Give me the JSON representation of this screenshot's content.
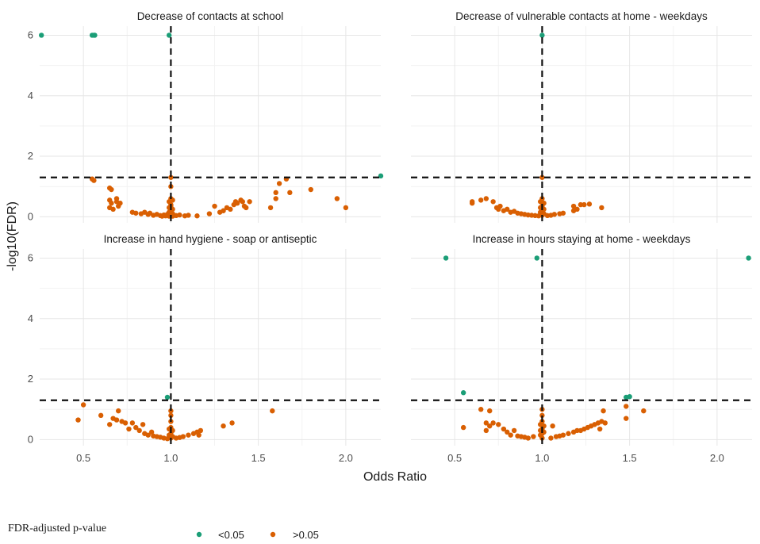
{
  "chart_data": {
    "type": "scatter",
    "xlabel": "Odds Ratio",
    "ylabel": "-log10(FDR)",
    "xlim": [
      0.25,
      2.2
    ],
    "ylim": [
      -0.2,
      6.3
    ],
    "x_ticks": [
      0.5,
      1.0,
      1.5,
      2.0
    ],
    "x_tick_labels": [
      "0.5",
      "1.0",
      "1.5",
      "2.0"
    ],
    "y_ticks": [
      0,
      2,
      4,
      6
    ],
    "y_tick_labels": [
      "0",
      "2",
      "4",
      "6"
    ],
    "reference_lines": {
      "vertical_x": 1.0,
      "horizontal_y": 1.3
    },
    "grid": true,
    "legend": {
      "title": "FDR-adjusted p-value",
      "placement": "bottom-left",
      "entries": [
        {
          "label": "<0.05",
          "color": "#1b9e77"
        },
        {
          "label": ">0.05",
          "color": "#d95f02"
        }
      ]
    },
    "colors": {
      "sig": "#1b9e77",
      "nonsig": "#d95f02"
    },
    "panels": [
      {
        "title": "Decrease of contacts at school",
        "series": [
          {
            "group": "sig",
            "points": [
              [
                0.26,
                6
              ],
              [
                0.55,
                6
              ],
              [
                0.56,
                6
              ],
              [
                0.565,
                6
              ],
              [
                0.99,
                6
              ],
              [
                2.2,
                1.35
              ]
            ]
          },
          {
            "group": "nonsig",
            "points": [
              [
                0.55,
                1.25
              ],
              [
                0.56,
                1.2
              ],
              [
                0.65,
                0.95
              ],
              [
                0.66,
                0.9
              ],
              [
                0.65,
                0.55
              ],
              [
                0.66,
                0.45
              ],
              [
                0.65,
                0.3
              ],
              [
                0.67,
                0.25
              ],
              [
                0.69,
                0.5
              ],
              [
                0.7,
                0.35
              ],
              [
                0.71,
                0.45
              ],
              [
                0.69,
                0.6
              ],
              [
                0.78,
                0.15
              ],
              [
                0.8,
                0.12
              ],
              [
                0.83,
                0.1
              ],
              [
                0.85,
                0.15
              ],
              [
                0.87,
                0.08
              ],
              [
                0.88,
                0.12
              ],
              [
                0.9,
                0.05
              ],
              [
                0.92,
                0.08
              ],
              [
                0.94,
                0.04
              ],
              [
                0.95,
                0.02
              ],
              [
                0.96,
                0.06
              ],
              [
                0.97,
                0.03
              ],
              [
                0.98,
                0.08
              ],
              [
                0.99,
                0.02
              ],
              [
                1.0,
                1.3
              ],
              [
                1.0,
                1.0
              ],
              [
                1.0,
                0.6
              ],
              [
                0.99,
                0.5
              ],
              [
                1.01,
                0.55
              ],
              [
                1.0,
                0.4
              ],
              [
                1.0,
                0.35
              ],
              [
                0.99,
                0.3
              ],
              [
                1.01,
                0.25
              ],
              [
                1.0,
                0.2
              ],
              [
                0.99,
                0.15
              ],
              [
                1.01,
                0.1
              ],
              [
                1.0,
                0.05
              ],
              [
                1.01,
                0.02
              ],
              [
                1.03,
                0.04
              ],
              [
                1.05,
                0.06
              ],
              [
                1.08,
                0.03
              ],
              [
                1.1,
                0.05
              ],
              [
                1.15,
                0.03
              ],
              [
                1.22,
                0.1
              ],
              [
                1.25,
                0.35
              ],
              [
                1.28,
                0.15
              ],
              [
                1.3,
                0.2
              ],
              [
                1.32,
                0.3
              ],
              [
                1.34,
                0.25
              ],
              [
                1.36,
                0.4
              ],
              [
                1.37,
                0.5
              ],
              [
                1.38,
                0.45
              ],
              [
                1.4,
                0.55
              ],
              [
                1.41,
                0.5
              ],
              [
                1.42,
                0.35
              ],
              [
                1.43,
                0.3
              ],
              [
                1.45,
                0.5
              ],
              [
                1.57,
                0.3
              ],
              [
                1.6,
                0.6
              ],
              [
                1.6,
                0.8
              ],
              [
                1.62,
                1.1
              ],
              [
                1.66,
                1.25
              ],
              [
                1.68,
                0.8
              ],
              [
                1.8,
                0.9
              ],
              [
                1.95,
                0.6
              ],
              [
                2.0,
                0.3
              ]
            ]
          }
        ]
      },
      {
        "title": "Decrease of vulnerable contacts at home - weekdays",
        "series": [
          {
            "group": "sig",
            "points": [
              [
                1.0,
                6
              ]
            ]
          },
          {
            "group": "nonsig",
            "points": [
              [
                0.6,
                0.45
              ],
              [
                0.6,
                0.5
              ],
              [
                0.65,
                0.55
              ],
              [
                0.68,
                0.6
              ],
              [
                0.72,
                0.5
              ],
              [
                0.74,
                0.3
              ],
              [
                0.75,
                0.25
              ],
              [
                0.76,
                0.35
              ],
              [
                0.78,
                0.2
              ],
              [
                0.8,
                0.25
              ],
              [
                0.82,
                0.15
              ],
              [
                0.84,
                0.18
              ],
              [
                0.86,
                0.12
              ],
              [
                0.88,
                0.1
              ],
              [
                0.9,
                0.08
              ],
              [
                0.92,
                0.06
              ],
              [
                0.94,
                0.05
              ],
              [
                0.96,
                0.04
              ],
              [
                0.98,
                0.03
              ],
              [
                1.0,
                1.3
              ],
              [
                1.0,
                0.6
              ],
              [
                0.99,
                0.5
              ],
              [
                1.01,
                0.45
              ],
              [
                1.0,
                0.35
              ],
              [
                0.99,
                0.3
              ],
              [
                1.01,
                0.25
              ],
              [
                1.0,
                0.2
              ],
              [
                0.99,
                0.15
              ],
              [
                1.01,
                0.1
              ],
              [
                1.0,
                0.05
              ],
              [
                1.03,
                0.04
              ],
              [
                1.05,
                0.05
              ],
              [
                1.07,
                0.08
              ],
              [
                1.1,
                0.1
              ],
              [
                1.12,
                0.12
              ],
              [
                1.18,
                0.2
              ],
              [
                1.18,
                0.35
              ],
              [
                1.2,
                0.25
              ],
              [
                1.22,
                0.4
              ],
              [
                1.24,
                0.4
              ],
              [
                1.27,
                0.42
              ],
              [
                1.34,
                0.3
              ]
            ]
          }
        ]
      },
      {
        "title": "Increase in hand hygiene - soap or antiseptic",
        "series": [
          {
            "group": "sig",
            "points": [
              [
                0.98,
                1.4
              ]
            ]
          },
          {
            "group": "nonsig",
            "points": [
              [
                0.47,
                0.65
              ],
              [
                0.5,
                1.15
              ],
              [
                0.6,
                0.8
              ],
              [
                0.65,
                0.5
              ],
              [
                0.67,
                0.7
              ],
              [
                0.69,
                0.65
              ],
              [
                0.7,
                0.95
              ],
              [
                0.72,
                0.6
              ],
              [
                0.74,
                0.55
              ],
              [
                0.76,
                0.35
              ],
              [
                0.78,
                0.55
              ],
              [
                0.8,
                0.4
              ],
              [
                0.82,
                0.3
              ],
              [
                0.84,
                0.5
              ],
              [
                0.85,
                0.2
              ],
              [
                0.87,
                0.15
              ],
              [
                0.89,
                0.25
              ],
              [
                0.9,
                0.12
              ],
              [
                0.92,
                0.1
              ],
              [
                0.94,
                0.08
              ],
              [
                0.96,
                0.05
              ],
              [
                0.98,
                0.03
              ],
              [
                1.0,
                0.95
              ],
              [
                1.0,
                0.8
              ],
              [
                1.0,
                0.6
              ],
              [
                1.0,
                0.4
              ],
              [
                0.99,
                0.35
              ],
              [
                1.01,
                0.3
              ],
              [
                1.0,
                0.2
              ],
              [
                0.99,
                0.15
              ],
              [
                1.01,
                0.1
              ],
              [
                1.0,
                0.05
              ],
              [
                1.03,
                0.05
              ],
              [
                1.05,
                0.07
              ],
              [
                1.07,
                0.1
              ],
              [
                1.1,
                0.15
              ],
              [
                1.13,
                0.2
              ],
              [
                1.15,
                0.25
              ],
              [
                1.17,
                0.3
              ],
              [
                1.16,
                0.15
              ],
              [
                1.3,
                0.45
              ],
              [
                1.35,
                0.55
              ],
              [
                1.58,
                0.95
              ]
            ]
          }
        ]
      },
      {
        "title": "Increase in hours staying at home - weekdays",
        "series": [
          {
            "group": "sig",
            "points": [
              [
                0.45,
                6
              ],
              [
                0.97,
                6
              ],
              [
                2.18,
                6
              ],
              [
                0.55,
                1.55
              ],
              [
                1.48,
                1.4
              ],
              [
                1.5,
                1.42
              ]
            ]
          },
          {
            "group": "nonsig",
            "points": [
              [
                0.55,
                0.4
              ],
              [
                0.65,
                1.0
              ],
              [
                0.7,
                0.95
              ],
              [
                0.68,
                0.55
              ],
              [
                0.7,
                0.45
              ],
              [
                0.72,
                0.55
              ],
              [
                0.68,
                0.3
              ],
              [
                0.75,
                0.5
              ],
              [
                0.78,
                0.35
              ],
              [
                0.8,
                0.25
              ],
              [
                0.82,
                0.15
              ],
              [
                0.84,
                0.3
              ],
              [
                0.86,
                0.12
              ],
              [
                0.88,
                0.1
              ],
              [
                0.9,
                0.08
              ],
              [
                0.92,
                0.05
              ],
              [
                0.95,
                0.1
              ],
              [
                1.0,
                1.0
              ],
              [
                1.0,
                0.8
              ],
              [
                1.0,
                0.6
              ],
              [
                0.99,
                0.5
              ],
              [
                1.01,
                0.45
              ],
              [
                1.0,
                0.35
              ],
              [
                0.99,
                0.3
              ],
              [
                1.01,
                0.25
              ],
              [
                1.0,
                0.2
              ],
              [
                0.99,
                0.15
              ],
              [
                1.0,
                0.05
              ],
              [
                1.05,
                0.05
              ],
              [
                1.08,
                0.1
              ],
              [
                1.1,
                0.12
              ],
              [
                1.12,
                0.15
              ],
              [
                1.15,
                0.2
              ],
              [
                1.18,
                0.25
              ],
              [
                1.2,
                0.3
              ],
              [
                1.22,
                0.3
              ],
              [
                1.24,
                0.35
              ],
              [
                1.26,
                0.4
              ],
              [
                1.28,
                0.45
              ],
              [
                1.3,
                0.5
              ],
              [
                1.32,
                0.55
              ],
              [
                1.34,
                0.6
              ],
              [
                1.35,
                0.95
              ],
              [
                1.36,
                0.55
              ],
              [
                1.48,
                0.7
              ],
              [
                1.48,
                1.1
              ],
              [
                1.58,
                0.95
              ],
              [
                1.06,
                0.45
              ],
              [
                1.33,
                0.35
              ]
            ]
          }
        ]
      }
    ]
  }
}
